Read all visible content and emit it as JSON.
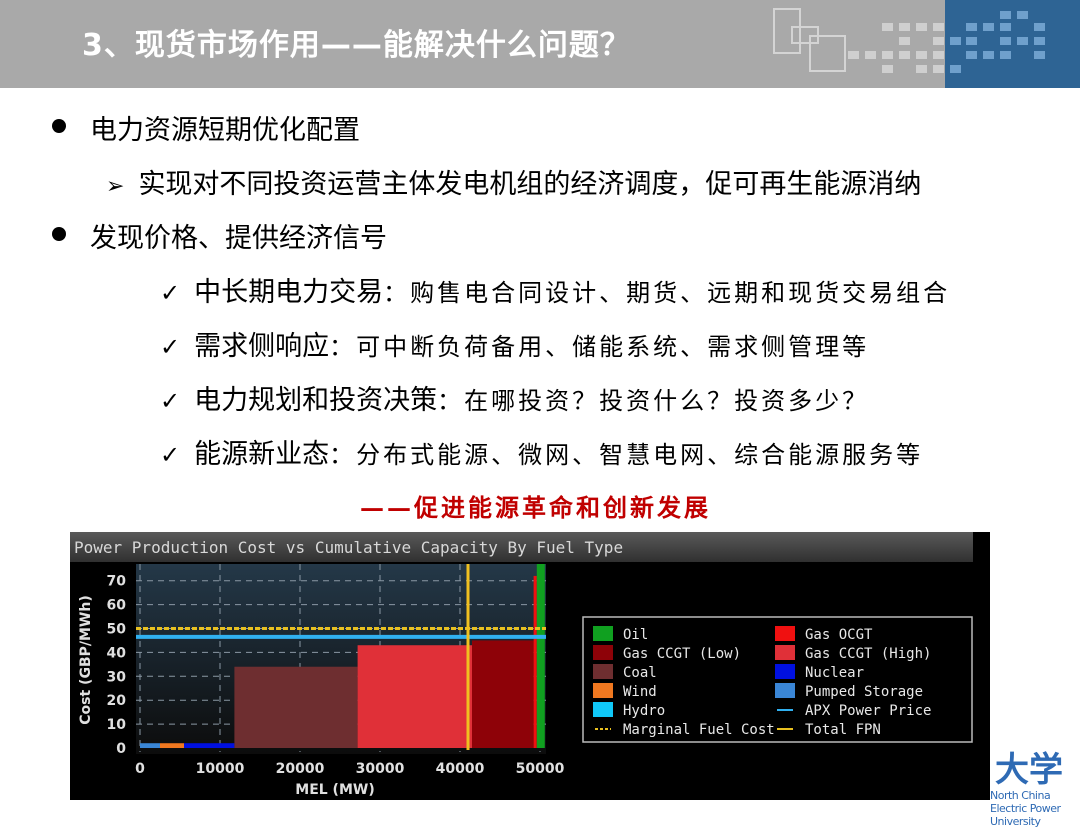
{
  "header": {
    "title": "3、现货市场作用——能解决什么问题？"
  },
  "bullets": [
    {
      "text": "电力资源短期优化配置",
      "sub": "实现对不同投资运营主体发电机组的经济调度，促可再生能源消纳"
    },
    {
      "text": "发现价格、提供经济信号"
    }
  ],
  "checks": [
    {
      "head": "中长期电力交易",
      "body": "：购售电合同设计、期货、远期和现货交易组合"
    },
    {
      "head": "需求侧响应",
      "body": "：可中断负荷备用、储能系统、需求侧管理等"
    },
    {
      "head": "电力规划和投资决策",
      "body": "：在哪投资？投资什么？投资多少？"
    },
    {
      "head": "能源新业态",
      "body": "：分布式能源、微网、智慧电网、综合能源服务等"
    }
  ],
  "slogan": "——促进能源革命和创新发展",
  "logo": {
    "cn": "大学",
    "en": "North China Electric Power University"
  },
  "chart_data": {
    "type": "bar",
    "title": "Power Production Cost vs Cumulative Capacity By Fuel Type",
    "xlabel": "MEL (MW)",
    "ylabel": "Cost (GBP/MWh)",
    "xlim": [
      0,
      50000
    ],
    "ylim": [
      0,
      70
    ],
    "xticks": [
      "0",
      "10000",
      "20000",
      "30000",
      "40000",
      "50000"
    ],
    "yticks": [
      "0",
      "10",
      "20",
      "30",
      "40",
      "50",
      "60",
      "70"
    ],
    "grid": true,
    "legend_position": "right",
    "bars": [
      {
        "fuel": "Pumped Storage",
        "x0": 0,
        "x1": 2500,
        "cost": 2,
        "color": "#3a86d6"
      },
      {
        "fuel": "Wind",
        "x0": 2500,
        "x1": 5500,
        "cost": 2,
        "color": "#f07820"
      },
      {
        "fuel": "Nuclear",
        "x0": 5500,
        "x1": 11800,
        "cost": 2,
        "color": "#0010e0"
      },
      {
        "fuel": "Coal",
        "x0": 11800,
        "x1": 27200,
        "cost": 34,
        "color": "#6e2e30"
      },
      {
        "fuel": "Gas CCGT (High)",
        "x0": 27200,
        "x1": 41500,
        "cost": 43,
        "color": "#e03038"
      },
      {
        "fuel": "Gas CCGT (Low)",
        "x0": 41500,
        "x1": 49200,
        "cost": 45,
        "color": "#8e0208"
      },
      {
        "fuel": "Gas OCGT",
        "x0": 49200,
        "x1": 49600,
        "cost": 72,
        "color": "#f01010"
      },
      {
        "fuel": "Oil",
        "x0": 49600,
        "x1": 51000,
        "cost": 80,
        "color": "#10a020"
      }
    ],
    "lines": {
      "apx_power_price": 46.5,
      "marginal_fuel_cost": 50,
      "total_fpn_mw": 41000
    },
    "legend": [
      {
        "label": "Oil",
        "color": "#10a020",
        "kind": "box"
      },
      {
        "label": "Gas OCGT",
        "color": "#f01010",
        "kind": "box"
      },
      {
        "label": "Gas CCGT (Low)",
        "color": "#8e0208",
        "kind": "box"
      },
      {
        "label": "Gas CCGT (High)",
        "color": "#e03038",
        "kind": "box"
      },
      {
        "label": "Coal",
        "color": "#6e2e30",
        "kind": "box"
      },
      {
        "label": "Nuclear",
        "color": "#0010e0",
        "kind": "box"
      },
      {
        "label": "Wind",
        "color": "#f07820",
        "kind": "box"
      },
      {
        "label": "Pumped Storage",
        "color": "#3a86d6",
        "kind": "box"
      },
      {
        "label": "Hydro",
        "color": "#10c8f8",
        "kind": "box"
      },
      {
        "label": "APX Power Price",
        "color": "#30b0f0",
        "kind": "line"
      },
      {
        "label": "Marginal Fuel Cost",
        "color": "#e8c020",
        "kind": "dash"
      },
      {
        "label": "Total FPN",
        "color": "#e8c020",
        "kind": "line"
      }
    ]
  }
}
